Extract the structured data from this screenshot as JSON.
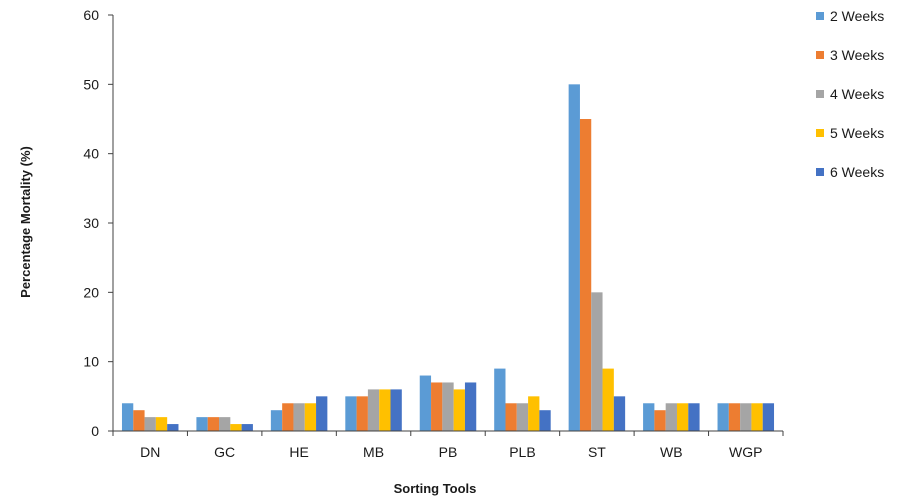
{
  "chart_data": {
    "type": "bar",
    "title": "",
    "xlabel": "Sorting Tools",
    "ylabel": "Percentage Mortality (%)",
    "ylim": [
      0,
      60
    ],
    "yticks": [
      0,
      10,
      20,
      30,
      40,
      50,
      60
    ],
    "grid": false,
    "legend_position": "top-right",
    "categories": [
      "DN",
      "GC",
      "HE",
      "MB",
      "PB",
      "PLB",
      "ST",
      "WB",
      "WGP"
    ],
    "series": [
      {
        "name": "2 Weeks",
        "color": "#5B9BD5",
        "values": [
          4,
          2,
          3,
          5,
          8,
          9,
          50,
          4,
          4
        ]
      },
      {
        "name": "3 Weeks",
        "color": "#ED7D31",
        "values": [
          3,
          2,
          4,
          5,
          7,
          4,
          45,
          3,
          4
        ]
      },
      {
        "name": "4 Weeks",
        "color": "#A5A5A5",
        "values": [
          2,
          2,
          4,
          6,
          7,
          4,
          20,
          4,
          4
        ]
      },
      {
        "name": "5 Weeks",
        "color": "#FFC000",
        "values": [
          2,
          1,
          4,
          6,
          6,
          5,
          9,
          4,
          4
        ]
      },
      {
        "name": "6 Weeks",
        "color": "#4472C4",
        "values": [
          1,
          1,
          5,
          6,
          7,
          3,
          5,
          4,
          4
        ]
      }
    ]
  }
}
